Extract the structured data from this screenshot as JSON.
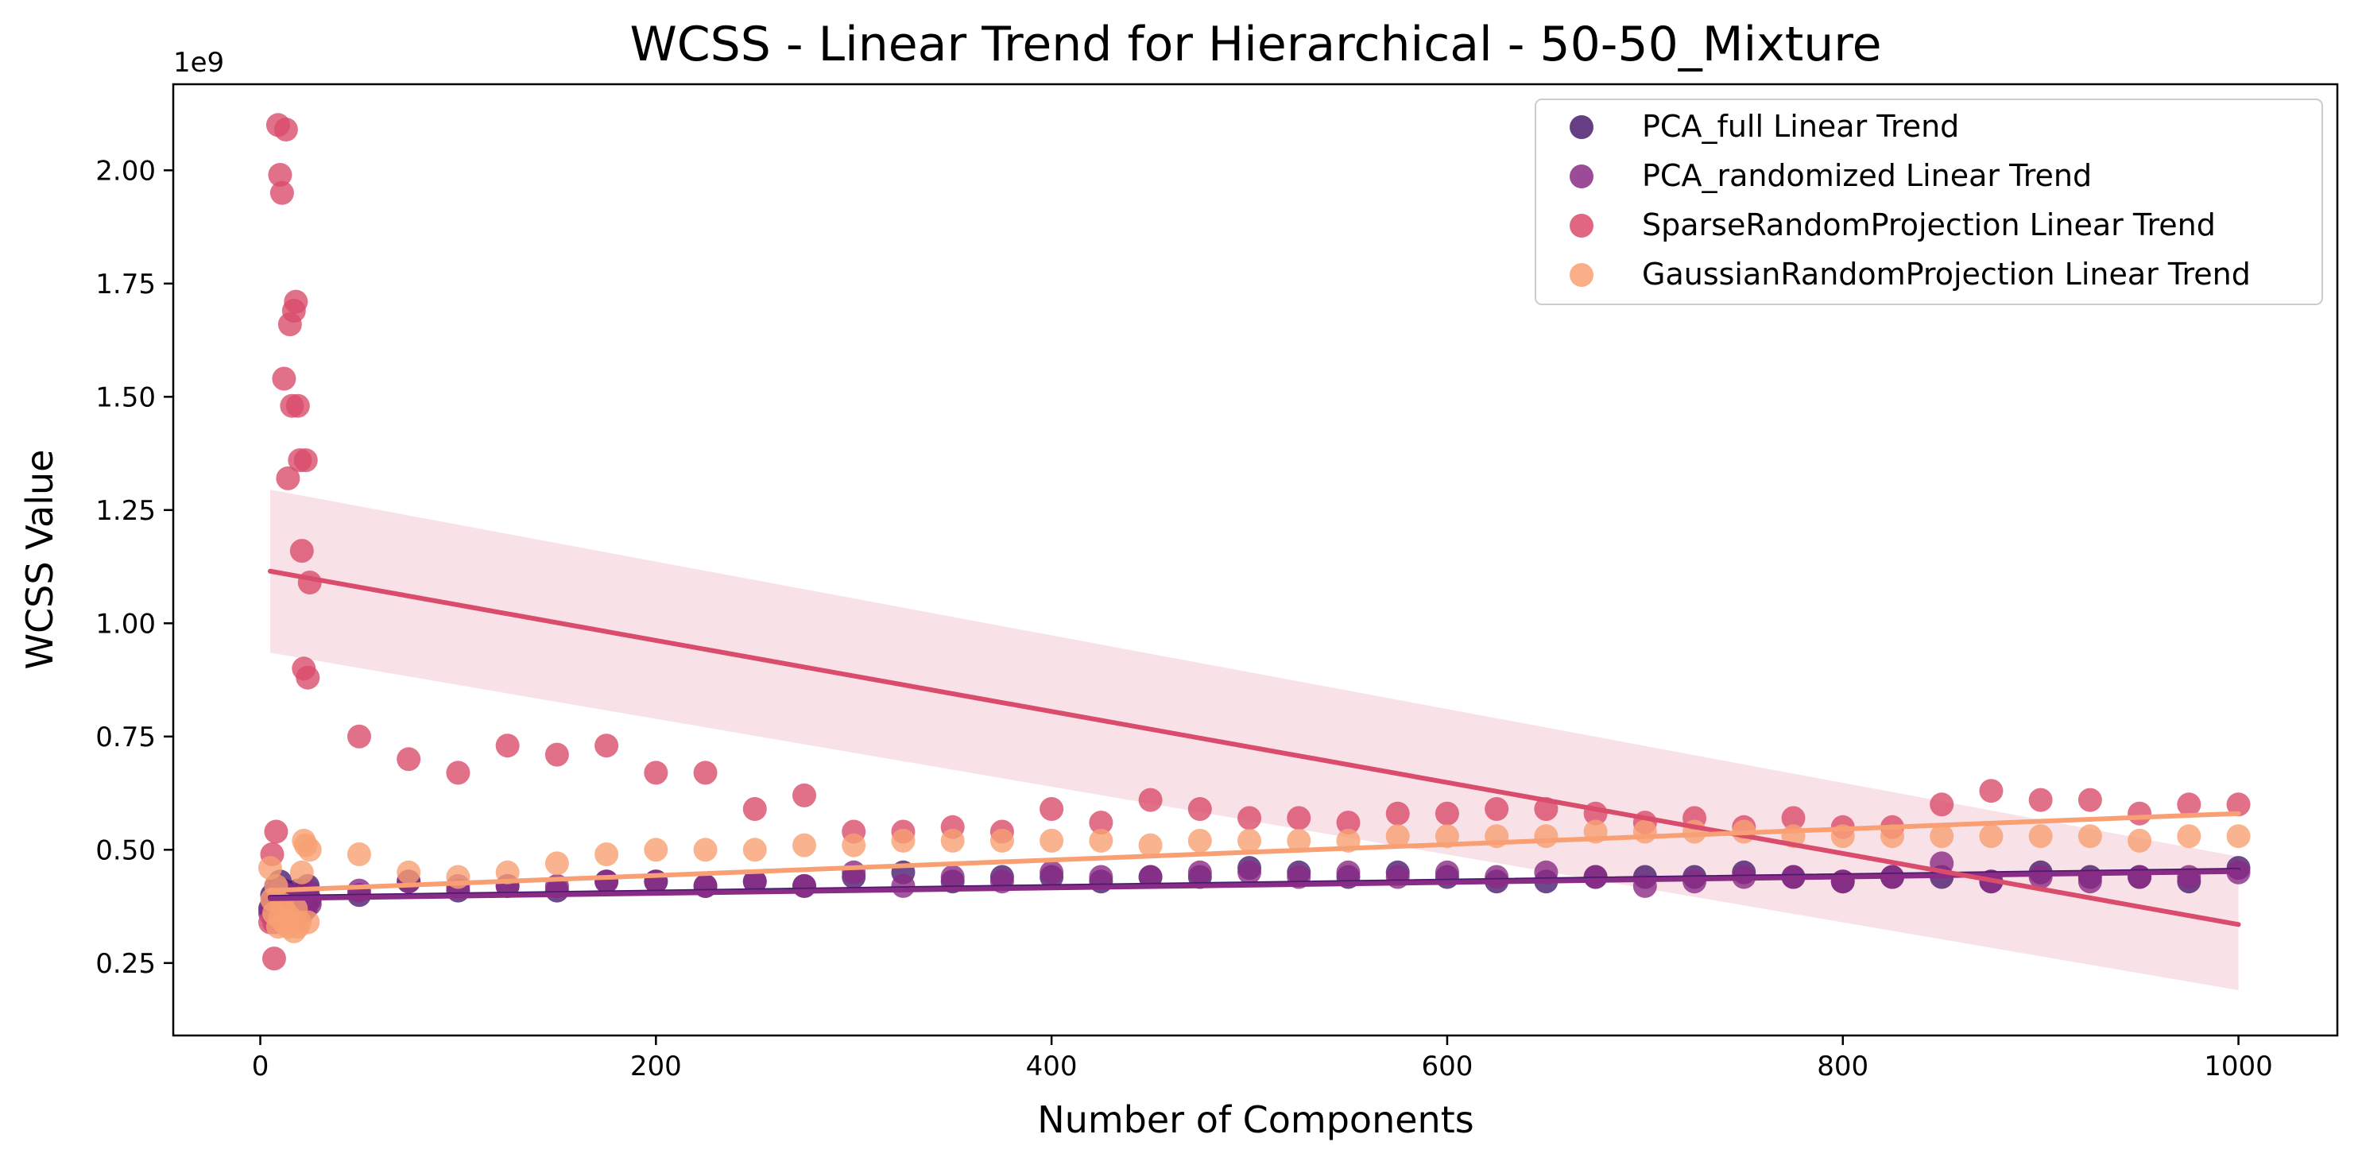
{
  "chart_data": {
    "type": "scatter",
    "title": "WCSS - Linear Trend for Hierarchical - 50-50_Mixture",
    "xlabel": "Number of Components",
    "ylabel": "WCSS Value",
    "y_offset_label": "1e9",
    "xlim": [
      -44,
      1050
    ],
    "ylim": [
      0.09,
      2.19
    ],
    "xticks": [
      0,
      200,
      400,
      600,
      800,
      1000
    ],
    "xtick_labels": [
      "0",
      "200",
      "400",
      "600",
      "800",
      "1000"
    ],
    "yticks": [
      0.25,
      0.5,
      0.75,
      1.0,
      1.25,
      1.5,
      1.75,
      2.0
    ],
    "ytick_labels": [
      "0.25",
      "0.50",
      "0.75",
      "1.00",
      "1.25",
      "1.50",
      "1.75",
      "2.00"
    ],
    "grid": false,
    "legend_position": "top-right",
    "series": [
      {
        "name": "PCA_full Linear Trend",
        "color": "#4a1c6e",
        "x": [
          5,
          6,
          7,
          8,
          9,
          10,
          11,
          12,
          13,
          14,
          15,
          16,
          17,
          18,
          19,
          20,
          21,
          22,
          23,
          24,
          25,
          50,
          75,
          100,
          125,
          150,
          175,
          200,
          225,
          250,
          275,
          300,
          325,
          350,
          375,
          400,
          425,
          450,
          475,
          500,
          525,
          550,
          575,
          600,
          625,
          650,
          675,
          700,
          725,
          750,
          775,
          800,
          825,
          850,
          875,
          900,
          925,
          950,
          975,
          1000
        ],
        "y": [
          0.37,
          0.4,
          0.36,
          0.42,
          0.38,
          0.43,
          0.36,
          0.41,
          0.35,
          0.39,
          0.37,
          0.4,
          0.38,
          0.36,
          0.41,
          0.39,
          0.37,
          0.4,
          0.38,
          0.42,
          0.39,
          0.4,
          0.43,
          0.41,
          0.42,
          0.41,
          0.43,
          0.43,
          0.42,
          0.43,
          0.42,
          0.44,
          0.45,
          0.43,
          0.44,
          0.44,
          0.43,
          0.44,
          0.44,
          0.46,
          0.45,
          0.44,
          0.45,
          0.44,
          0.43,
          0.43,
          0.44,
          0.44,
          0.44,
          0.45,
          0.44,
          0.43,
          0.44,
          0.44,
          0.43,
          0.45,
          0.44,
          0.44,
          0.43,
          0.46
        ],
        "trend": [
          [
            5,
            0.395
          ],
          [
            1000,
            0.455
          ]
        ]
      },
      {
        "name": "PCA_randomized Linear Trend",
        "color": "#8a2b85",
        "x": [
          5,
          6,
          7,
          8,
          9,
          10,
          11,
          12,
          13,
          14,
          15,
          16,
          17,
          18,
          19,
          20,
          21,
          22,
          23,
          24,
          25,
          50,
          75,
          100,
          125,
          150,
          175,
          200,
          225,
          250,
          275,
          300,
          325,
          350,
          375,
          400,
          425,
          450,
          475,
          500,
          525,
          550,
          575,
          600,
          625,
          650,
          675,
          700,
          725,
          750,
          775,
          800,
          825,
          850,
          875,
          900,
          925,
          950,
          975,
          1000
        ],
        "y": [
          0.36,
          0.38,
          0.34,
          0.4,
          0.37,
          0.41,
          0.35,
          0.39,
          0.36,
          0.38,
          0.34,
          0.4,
          0.37,
          0.35,
          0.39,
          0.38,
          0.36,
          0.4,
          0.37,
          0.41,
          0.38,
          0.41,
          0.43,
          0.42,
          0.42,
          0.42,
          0.43,
          0.43,
          0.42,
          0.43,
          0.42,
          0.45,
          0.42,
          0.44,
          0.43,
          0.45,
          0.44,
          0.44,
          0.45,
          0.45,
          0.44,
          0.45,
          0.44,
          0.45,
          0.44,
          0.45,
          0.44,
          0.42,
          0.43,
          0.44,
          0.44,
          0.43,
          0.44,
          0.47,
          0.43,
          0.44,
          0.43,
          0.44,
          0.44,
          0.45
        ],
        "trend": [
          [
            5,
            0.392
          ],
          [
            1000,
            0.452
          ]
        ]
      },
      {
        "name": "SparseRandomProjection Linear Trend",
        "color": "#d94c6b",
        "x": [
          5,
          6,
          7,
          8,
          9,
          10,
          11,
          12,
          13,
          14,
          15,
          16,
          17,
          18,
          19,
          20,
          21,
          22,
          23,
          24,
          25,
          50,
          75,
          100,
          125,
          150,
          175,
          200,
          225,
          250,
          275,
          300,
          325,
          350,
          375,
          400,
          425,
          450,
          475,
          500,
          525,
          550,
          575,
          600,
          625,
          650,
          675,
          700,
          725,
          750,
          775,
          800,
          825,
          850,
          875,
          900,
          925,
          950,
          975,
          1000
        ],
        "y": [
          0.34,
          0.49,
          0.26,
          0.54,
          2.1,
          1.99,
          1.95,
          1.54,
          2.09,
          1.32,
          1.66,
          1.48,
          1.69,
          1.71,
          1.48,
          1.36,
          1.16,
          0.9,
          1.36,
          0.88,
          1.09,
          0.75,
          0.7,
          0.67,
          0.73,
          0.71,
          0.73,
          0.67,
          0.67,
          0.59,
          0.62,
          0.54,
          0.54,
          0.55,
          0.54,
          0.59,
          0.56,
          0.61,
          0.59,
          0.57,
          0.57,
          0.56,
          0.58,
          0.58,
          0.59,
          0.59,
          0.58,
          0.56,
          0.57,
          0.55,
          0.57,
          0.55,
          0.55,
          0.6,
          0.63,
          0.61,
          0.61,
          0.58,
          0.6,
          0.6
        ],
        "trend": [
          [
            5,
            1.115
          ],
          [
            1000,
            0.335
          ]
        ],
        "ci_upper": [
          [
            5,
            1.295
          ],
          [
            1000,
            0.485
          ]
        ],
        "ci_lower": [
          [
            5,
            0.935
          ],
          [
            1000,
            0.19
          ]
        ]
      },
      {
        "name": "GaussianRandomProjection Linear Trend",
        "color": "#f8a073",
        "x": [
          5,
          6,
          7,
          8,
          9,
          10,
          11,
          12,
          13,
          14,
          15,
          16,
          17,
          18,
          19,
          20,
          21,
          22,
          23,
          24,
          25,
          50,
          75,
          100,
          125,
          150,
          175,
          200,
          225,
          250,
          275,
          300,
          325,
          350,
          375,
          400,
          425,
          450,
          475,
          500,
          525,
          550,
          575,
          600,
          625,
          650,
          675,
          700,
          725,
          750,
          775,
          800,
          825,
          850,
          875,
          900,
          925,
          950,
          975,
          1000
        ],
        "y": [
          0.46,
          0.39,
          0.36,
          0.42,
          0.33,
          0.35,
          0.38,
          0.34,
          0.36,
          0.33,
          0.35,
          0.34,
          0.32,
          0.37,
          0.33,
          0.34,
          0.45,
          0.52,
          0.51,
          0.34,
          0.5,
          0.49,
          0.45,
          0.44,
          0.45,
          0.47,
          0.49,
          0.5,
          0.5,
          0.5,
          0.51,
          0.51,
          0.52,
          0.52,
          0.52,
          0.52,
          0.52,
          0.51,
          0.52,
          0.52,
          0.52,
          0.52,
          0.53,
          0.53,
          0.53,
          0.53,
          0.54,
          0.54,
          0.54,
          0.54,
          0.53,
          0.53,
          0.53,
          0.53,
          0.53,
          0.53,
          0.53,
          0.52,
          0.53,
          0.53
        ],
        "trend": [
          [
            5,
            0.41
          ],
          [
            1000,
            0.58
          ]
        ]
      }
    ]
  }
}
